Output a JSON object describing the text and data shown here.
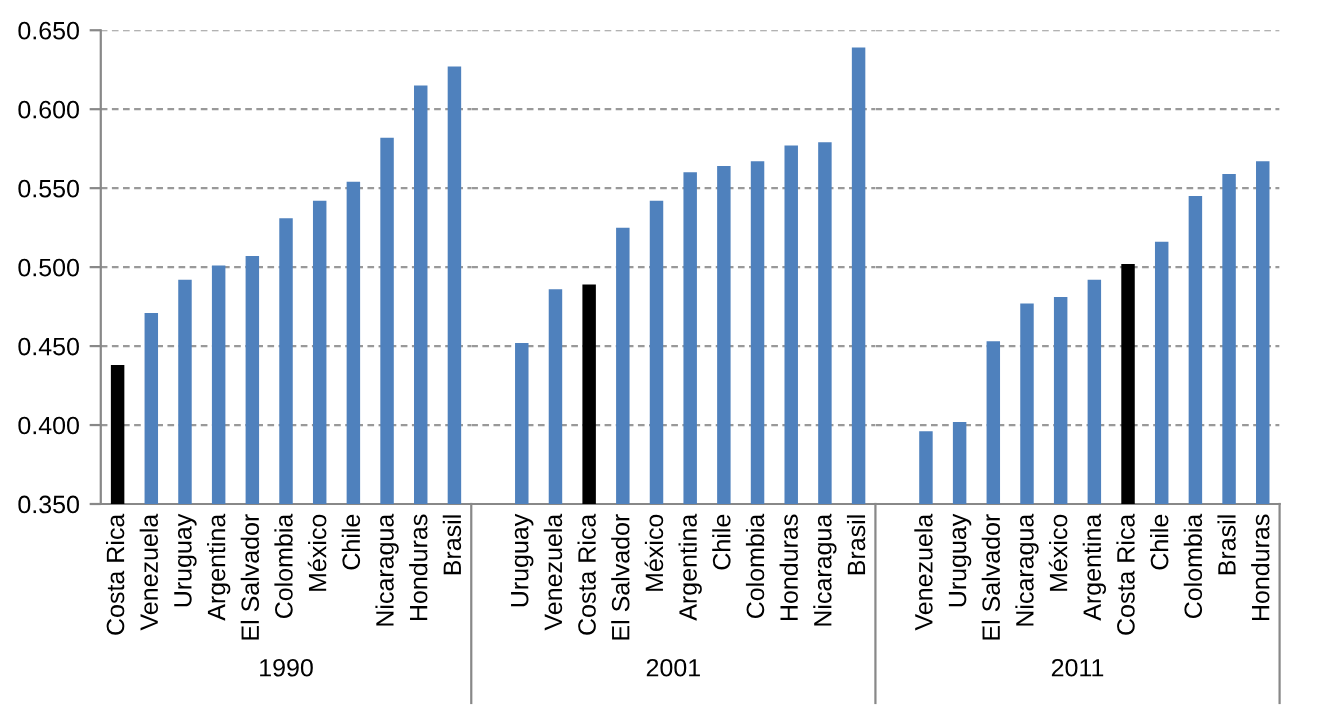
{
  "chart_data": [
    {
      "type": "bar",
      "xlabel": "1990",
      "categories": [
        "Costa Rica",
        "Venezuela",
        "Uruguay",
        "Argentina",
        "El Salvador",
        "Colombia",
        "México",
        "Chile",
        "Nicaragua",
        "Honduras",
        "Brasil"
      ],
      "values": [
        0.438,
        0.471,
        0.492,
        0.501,
        0.507,
        0.531,
        0.542,
        0.554,
        0.582,
        0.615,
        0.627
      ],
      "colors": [
        "#000000",
        "#4f81bd",
        "#4f81bd",
        "#4f81bd",
        "#4f81bd",
        "#4f81bd",
        "#4f81bd",
        "#4f81bd",
        "#4f81bd",
        "#4f81bd",
        "#4f81bd"
      ],
      "ylim": [
        0.35,
        0.65
      ],
      "yticks": [
        {
          "value": 0.35,
          "label": "0.350"
        },
        {
          "value": 0.4,
          "label": "0.400"
        },
        {
          "value": 0.45,
          "label": "0.450"
        },
        {
          "value": 0.5,
          "label": "0.500"
        },
        {
          "value": 0.55,
          "label": "0.550"
        },
        {
          "value": 0.6,
          "label": "0.600"
        },
        {
          "value": 0.65,
          "label": "0.650"
        }
      ],
      "grid": "y"
    },
    {
      "type": "bar",
      "xlabel": "2001",
      "categories": [
        null,
        "Uruguay",
        "Venezuela",
        "Costa Rica",
        "El Salvador",
        "México",
        "Argentina",
        "Chile",
        "Colombia",
        "Honduras",
        "Nicaragua",
        "Brasil"
      ],
      "values": [
        null,
        0.452,
        0.486,
        0.489,
        0.525,
        0.542,
        0.56,
        0.564,
        0.567,
        0.577,
        0.579,
        0.639
      ],
      "colors": [
        "#4f81bd",
        "#4f81bd",
        "#4f81bd",
        "#000000",
        "#4f81bd",
        "#4f81bd",
        "#4f81bd",
        "#4f81bd",
        "#4f81bd",
        "#4f81bd",
        "#4f81bd",
        "#4f81bd"
      ],
      "ylim": [
        0.35,
        0.65
      ],
      "grid": "y",
      "tick_labels": "x"
    },
    {
      "type": "bar",
      "xlabel": "2011",
      "categories": [
        null,
        "Venezuela",
        "Uruguay",
        "El Salvador",
        "Nicaragua",
        "México",
        "Argentina",
        "Costa Rica",
        "Chile",
        "Colombia",
        "Brasil",
        "Honduras"
      ],
      "values": [
        null,
        0.396,
        0.402,
        0.453,
        0.477,
        0.481,
        0.492,
        0.502,
        0.516,
        0.545,
        0.559,
        0.567
      ],
      "colors": [
        "#4f81bd",
        "#4f81bd",
        "#4f81bd",
        "#4f81bd",
        "#4f81bd",
        "#4f81bd",
        "#4f81bd",
        "#000000",
        "#4f81bd",
        "#4f81bd",
        "#4f81bd",
        "#4f81bd"
      ],
      "ylim": [
        0.35,
        0.65
      ],
      "grid": "y",
      "tick_labels": "x"
    }
  ]
}
